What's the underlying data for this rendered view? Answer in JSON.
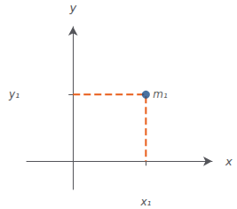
{
  "chart_data": {
    "type": "scatter",
    "xlabel": "x",
    "ylabel": "y",
    "xlim": [
      -0.35,
      1.05
    ],
    "ylim": [
      -0.22,
      1.05
    ],
    "xticks": [
      {
        "value": 0.55,
        "label": "x₁"
      }
    ],
    "yticks": [
      {
        "value": 0.52,
        "label": "y₁"
      }
    ],
    "grid": false,
    "series": [
      {
        "type": "line",
        "line_style": "dashed",
        "color": "#E85D1A",
        "x": [
          0,
          0.55,
          0.55
        ],
        "values": [
          0.52,
          0.52,
          0
        ]
      },
      {
        "type": "scatter",
        "marker": "circle",
        "color": "#1B4F8A",
        "x": [
          0.55
        ],
        "values": [
          0.52
        ]
      }
    ],
    "annotations": [
      {
        "text": "m₁",
        "x": 0.55,
        "y": 0.52
      }
    ]
  }
}
